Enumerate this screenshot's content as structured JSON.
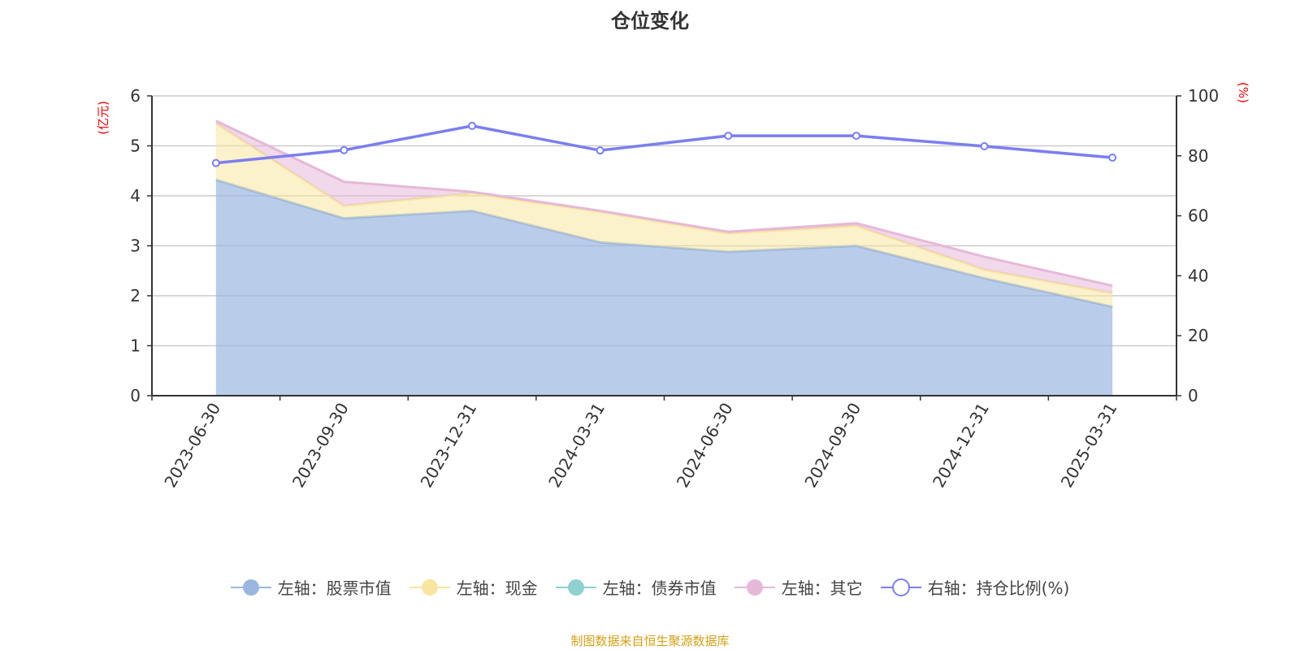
{
  "chart_data": {
    "type": "area",
    "title": "仓位变化",
    "categories": [
      "2023-06-30",
      "2023-09-30",
      "2023-12-31",
      "2024-03-31",
      "2024-06-30",
      "2024-09-30",
      "2024-12-31",
      "2025-03-31"
    ],
    "left_axis": {
      "label": "(亿元)",
      "ylim": [
        0,
        6
      ],
      "ticks": [
        "0",
        "1",
        "2",
        "3",
        "4",
        "5",
        "6"
      ]
    },
    "right_axis": {
      "label": "(%)",
      "ylim": [
        0,
        100
      ],
      "ticks": [
        "0",
        "20",
        "40",
        "60",
        "80",
        "100"
      ]
    },
    "grid": true,
    "legend_position": "bottom",
    "series": [
      {
        "name": "左轴：股票市值",
        "axis": "left",
        "type": "area",
        "color": "#9bb7e0",
        "values": [
          4.32,
          3.55,
          3.7,
          3.07,
          2.88,
          3.0,
          2.35,
          1.78
        ]
      },
      {
        "name": "左轴：现金",
        "axis": "left",
        "type": "area",
        "color": "#f8e6a0",
        "values": [
          1.13,
          0.25,
          0.35,
          0.61,
          0.37,
          0.4,
          0.17,
          0.27
        ]
      },
      {
        "name": "左轴：债券市值",
        "axis": "left",
        "type": "area",
        "color": "#8fd0d0",
        "values": [
          0,
          0,
          0,
          0,
          0,
          0,
          0,
          0
        ]
      },
      {
        "name": "左轴：其它",
        "axis": "left",
        "type": "area",
        "color": "#e6b8d8",
        "values": [
          0.05,
          0.48,
          0.03,
          0.02,
          0.03,
          0.05,
          0.26,
          0.15
        ]
      },
      {
        "name": "右轴：持仓比例(%)",
        "axis": "right",
        "type": "line",
        "color": "#7b7ef0",
        "values": [
          77.6,
          81.9,
          90.0,
          81.8,
          86.7,
          86.7,
          83.2,
          79.4
        ]
      }
    ]
  },
  "source": "制图数据来自恒生聚源数据库"
}
